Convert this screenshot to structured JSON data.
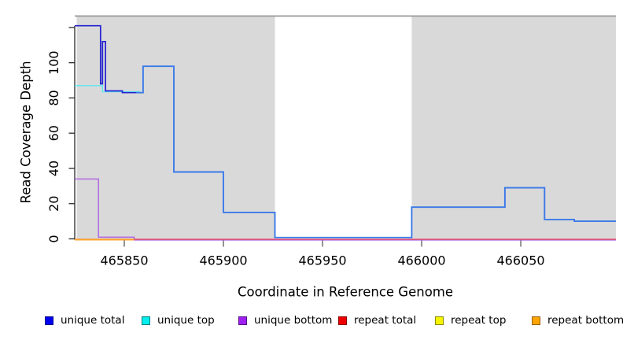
{
  "chart_data": {
    "type": "line",
    "subtype": "step-coverage",
    "x_axis": {
      "label": "Coordinate in Reference Genome",
      "ticks": [
        465850,
        465900,
        465950,
        466000,
        466050
      ],
      "range": [
        465825,
        466098
      ],
      "grid": false
    },
    "y_axis": {
      "label": "Read Coverage Depth",
      "ticks": [
        0,
        20,
        40,
        60,
        80,
        100,
        120
      ],
      "tick_labels": [
        "0",
        "20",
        "40",
        "60",
        "80",
        "100",
        ""
      ],
      "range": [
        0,
        126.4
      ],
      "grid": false
    },
    "shaded_bands": [
      {
        "x0": 465826,
        "x1": 465926,
        "color": "#d9d9d9"
      },
      {
        "x0": 465995,
        "x1": 466098,
        "color": "#d9d9d9"
      }
    ],
    "gap_region": {
      "x0": 465926,
      "x1": 465995
    },
    "top_border_color": "#9a9a9a",
    "series": [
      {
        "name": "unique total",
        "color": "#3a79e8",
        "dark_color": "#2422cf",
        "dark_until": 465856,
        "width": 1.9,
        "steps": [
          [
            465825,
            121
          ],
          [
            465838,
            88
          ],
          [
            465839,
            112
          ],
          [
            465840.5,
            84
          ],
          [
            465849,
            83
          ],
          [
            465859.5,
            98
          ],
          [
            465875,
            38
          ],
          [
            465900,
            15
          ],
          [
            465926,
            0
          ],
          [
            465995,
            18
          ],
          [
            466042,
            29
          ],
          [
            466062,
            11
          ],
          [
            466077,
            10
          ],
          [
            466098,
            10
          ]
        ]
      },
      {
        "name": "unique top",
        "color": "#5ce8f2",
        "width": 1.4,
        "steps": [
          [
            465825,
            87
          ],
          [
            465839,
            83.5
          ],
          [
            465858,
            83.5
          ]
        ]
      },
      {
        "name": "unique bottom",
        "color": "#ad5fe0",
        "width": 1.4,
        "steps": [
          [
            465825,
            34
          ],
          [
            465837,
            1
          ],
          [
            465855,
            0
          ],
          [
            466098,
            0
          ]
        ]
      },
      {
        "name": "repeat total",
        "color": "#e84a66",
        "width": 1.4,
        "steps": [
          [
            465825,
            0
          ],
          [
            466098,
            0
          ]
        ]
      },
      {
        "name": "repeat top",
        "color": "#f2e640",
        "width": 1.2,
        "steps": [
          [
            465825,
            0
          ],
          [
            465855,
            0
          ]
        ]
      },
      {
        "name": "repeat bottom",
        "color": "#ffa428",
        "width": 1.9,
        "steps": [
          [
            465825,
            0
          ],
          [
            465855,
            0
          ]
        ]
      }
    ],
    "legend_position": "bottom"
  },
  "legend": {
    "items": [
      {
        "label": "unique total",
        "fill": "#0000ee",
        "border": "#000090"
      },
      {
        "label": "unique top",
        "fill": "#00eeee",
        "border": "#007d7d"
      },
      {
        "label": "unique bottom",
        "fill": "#a020f0",
        "border": "#55128a"
      },
      {
        "label": "repeat total",
        "fill": "#ee0000",
        "border": "#8a0000"
      },
      {
        "label": "repeat top",
        "fill": "#f5f500",
        "border": "#8a8a00"
      },
      {
        "label": "repeat bottom",
        "fill": "#ffa500",
        "border": "#96600a"
      }
    ]
  }
}
